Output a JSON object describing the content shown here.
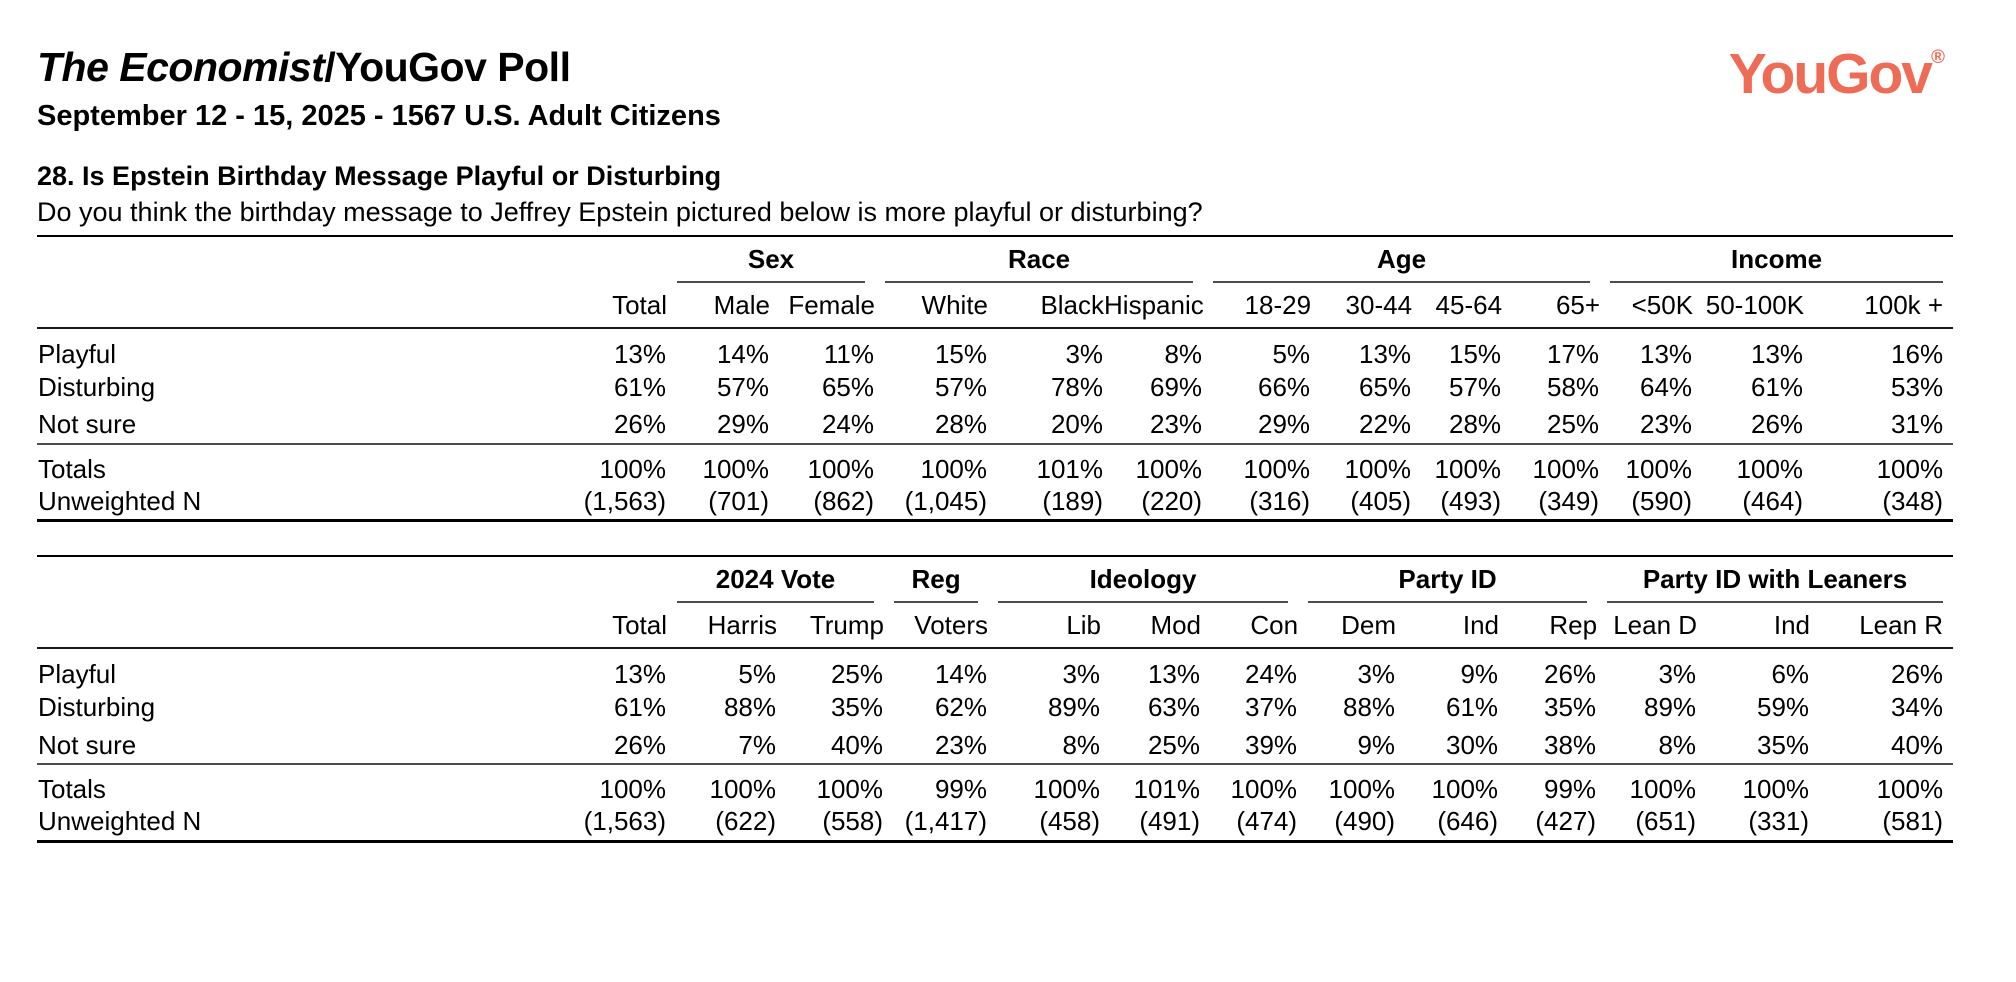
{
  "header": {
    "title_em": "The Economist",
    "title_rest": "/YouGov Poll",
    "subtitle": "September 12 - 15, 2025 - 1567 U.S. Adult Citizens"
  },
  "logo": {
    "text": "YouGov",
    "reg": "®",
    "color": "#EE6C55"
  },
  "question": {
    "heading": "28. Is Epstein Birthday Message Playful or Disturbing",
    "text": "Do you think the birthday message to Jeffrey Epstein pictured below is more playful or disturbing?"
  },
  "tables": [
    {
      "name": "demographics",
      "groups": [
        {
          "label": "",
          "span": 2
        },
        {
          "label": "Sex",
          "span": 2
        },
        {
          "label": "Race",
          "span": 3
        },
        {
          "label": "Age",
          "span": 4
        },
        {
          "label": "Income",
          "span": 3
        }
      ],
      "columns": [
        "Total",
        "Male",
        "Female",
        "White",
        "Black",
        "Hispanic",
        "18-29",
        "30-44",
        "45-64",
        "65+",
        "<50K",
        "50-100K",
        "100k +"
      ],
      "rows": [
        {
          "label": "Playful",
          "values": [
            "13%",
            "14%",
            "11%",
            "15%",
            "3%",
            "8%",
            "5%",
            "13%",
            "15%",
            "17%",
            "13%",
            "13%",
            "16%"
          ]
        },
        {
          "label": "Disturbing",
          "values": [
            "61%",
            "57%",
            "65%",
            "57%",
            "78%",
            "69%",
            "66%",
            "65%",
            "57%",
            "58%",
            "64%",
            "61%",
            "53%"
          ]
        },
        {
          "label": "Not sure",
          "values": [
            "26%",
            "29%",
            "24%",
            "28%",
            "20%",
            "23%",
            "29%",
            "22%",
            "28%",
            "25%",
            "23%",
            "26%",
            "31%"
          ]
        }
      ],
      "summary_rows": [
        {
          "label": "Totals",
          "values": [
            "100%",
            "100%",
            "100%",
            "100%",
            "101%",
            "100%",
            "100%",
            "100%",
            "100%",
            "100%",
            "100%",
            "100%",
            "100%"
          ]
        },
        {
          "label": "Unweighted N",
          "values": [
            "(1,563)",
            "(701)",
            "(862)",
            "(1,045)",
            "(189)",
            "(220)",
            "(316)",
            "(405)",
            "(493)",
            "(349)",
            "(590)",
            "(464)",
            "(348)"
          ]
        }
      ]
    },
    {
      "name": "politics",
      "groups": [
        {
          "label": "",
          "span": 2
        },
        {
          "label": "2024 Vote",
          "span": 2
        },
        {
          "label": "Reg",
          "span": 1
        },
        {
          "label": "Ideology",
          "span": 3
        },
        {
          "label": "Party ID",
          "span": 3
        },
        {
          "label": "Party ID with Leaners",
          "span": 3
        }
      ],
      "columns": [
        "Total",
        "Harris",
        "Trump",
        "Voters",
        "Lib",
        "Mod",
        "Con",
        "Dem",
        "Ind",
        "Rep",
        "Lean D",
        "Ind",
        "Lean R"
      ],
      "rows": [
        {
          "label": "Playful",
          "values": [
            "13%",
            "5%",
            "25%",
            "14%",
            "3%",
            "13%",
            "24%",
            "3%",
            "9%",
            "26%",
            "3%",
            "6%",
            "26%"
          ]
        },
        {
          "label": "Disturbing",
          "values": [
            "61%",
            "88%",
            "35%",
            "62%",
            "89%",
            "63%",
            "37%",
            "88%",
            "61%",
            "35%",
            "89%",
            "59%",
            "34%"
          ]
        },
        {
          "label": "Not sure",
          "values": [
            "26%",
            "7%",
            "40%",
            "23%",
            "8%",
            "25%",
            "39%",
            "9%",
            "30%",
            "38%",
            "8%",
            "35%",
            "40%"
          ]
        }
      ],
      "summary_rows": [
        {
          "label": "Totals",
          "values": [
            "100%",
            "100%",
            "100%",
            "99%",
            "100%",
            "101%",
            "100%",
            "100%",
            "100%",
            "99%",
            "100%",
            "100%",
            "100%"
          ]
        },
        {
          "label": "Unweighted N",
          "values": [
            "(1,563)",
            "(622)",
            "(558)",
            "(1,417)",
            "(458)",
            "(491)",
            "(474)",
            "(490)",
            "(646)",
            "(427)",
            "(651)",
            "(331)",
            "(581)"
          ]
        }
      ]
    }
  ]
}
